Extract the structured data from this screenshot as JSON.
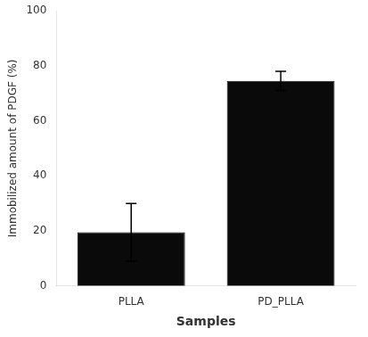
{
  "chart_data": {
    "type": "bar",
    "xlabel": "Samples",
    "ylabel": "Immobilized amount of PDGF (%)",
    "categories": [
      "PLLA",
      "PD_PLLA"
    ],
    "values": [
      19.5,
      74.5
    ],
    "errors": [
      10.5,
      3.5
    ],
    "color": "#0a0a0a",
    "ylim": [
      0,
      100
    ],
    "yticks": [
      0,
      20,
      40,
      60,
      80,
      100
    ],
    "grid": false
  }
}
